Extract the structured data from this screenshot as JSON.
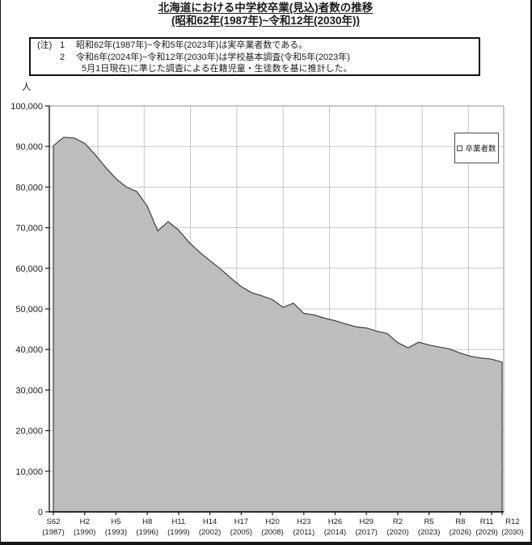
{
  "header": {
    "title_line1": "北海道における中学校卒業(見込)者数の推移",
    "title_line2": "(昭和62年(1987年)~令和12年(2030年))"
  },
  "note": {
    "lines": [
      {
        "prefix": "(注)",
        "num": "1",
        "text": "昭和62年(1987年)~令和5年(2023年)は実卒業者数である。"
      },
      {
        "prefix": "",
        "num": "2",
        "text": "令和6年(2024年)~令和12年(2030年)は学校基本調査(令和5年(2023年)"
      },
      {
        "prefix": "",
        "num": "",
        "text": "5月1日現在)に準じた調査による在籍児童・生徒数を基に推計した。"
      }
    ]
  },
  "chart_data": {
    "type": "area",
    "title": "北海道における中学校卒業(見込)者数の推移",
    "unit_label": "人",
    "legend": "卒業者数",
    "legend_position": "top-right",
    "ylim": [
      0,
      100000
    ],
    "grid": true,
    "y_ticks": [
      {
        "value": 0,
        "label": "0"
      },
      {
        "value": 10000,
        "label": "10,000"
      },
      {
        "value": 20000,
        "label": "20,000"
      },
      {
        "value": 30000,
        "label": "30,000"
      },
      {
        "value": 40000,
        "label": "40,000"
      },
      {
        "value": 50000,
        "label": "50,000"
      },
      {
        "value": 60000,
        "label": "60,000"
      },
      {
        "value": 70000,
        "label": "70,000"
      },
      {
        "value": 80000,
        "label": "80,000"
      },
      {
        "value": 90000,
        "label": "90,000"
      },
      {
        "value": 100000,
        "label": "100,000"
      }
    ],
    "x_ticks": [
      {
        "year": 1987,
        "era": "S62",
        "label": "(1987)"
      },
      {
        "year": 1990,
        "era": "H2",
        "label": "(1990)"
      },
      {
        "year": 1993,
        "era": "H5",
        "label": "(1993)"
      },
      {
        "year": 1996,
        "era": "H8",
        "label": "(1996)"
      },
      {
        "year": 1999,
        "era": "H11",
        "label": "(1999)"
      },
      {
        "year": 2002,
        "era": "H14",
        "label": "(2002)"
      },
      {
        "year": 2005,
        "era": "H17",
        "label": "(2005)"
      },
      {
        "year": 2008,
        "era": "H20",
        "label": "(2008)"
      },
      {
        "year": 2011,
        "era": "H23",
        "label": "(2011)"
      },
      {
        "year": 2014,
        "era": "H26",
        "label": "(2014)"
      },
      {
        "year": 2017,
        "era": "H29",
        "label": "(2017)"
      },
      {
        "year": 2020,
        "era": "R2",
        "label": "(2020)"
      },
      {
        "year": 2023,
        "era": "R5",
        "label": "(2023)"
      },
      {
        "year": 2026,
        "era": "R8",
        "label": "(2026)"
      },
      {
        "year": 2029,
        "era": "R11",
        "label": "(2029)"
      },
      {
        "year": 2030,
        "era": "R12",
        "label": "(2030)"
      }
    ],
    "x": [
      1987,
      1988,
      1989,
      1990,
      1991,
      1992,
      1993,
      1994,
      1995,
      1996,
      1997,
      1998,
      1999,
      2000,
      2001,
      2002,
      2003,
      2004,
      2005,
      2006,
      2007,
      2008,
      2009,
      2010,
      2011,
      2012,
      2013,
      2014,
      2015,
      2016,
      2017,
      2018,
      2019,
      2020,
      2021,
      2022,
      2023,
      2024,
      2025,
      2026,
      2027,
      2028,
      2029,
      2030
    ],
    "series": [
      {
        "name": "卒業者数",
        "values": [
          90200,
          92300,
          92100,
          90800,
          88000,
          84900,
          82100,
          80000,
          78900,
          75300,
          69200,
          71500,
          69400,
          66400,
          64000,
          61900,
          59900,
          57600,
          55500,
          54000,
          53200,
          52300,
          50400,
          51400,
          48900,
          48500,
          47700,
          47100,
          46300,
          45600,
          45300,
          44500,
          43900,
          41700,
          40400,
          41800,
          41100,
          40600,
          40100,
          39100,
          38300,
          37900,
          37600,
          36900
        ]
      }
    ],
    "colors": {
      "area_fill": "#bdbdbd",
      "area_stroke": "#3f3f3f",
      "gridline": "#c6c6c6",
      "frame": "#a8a8a8",
      "axis": "#1a1a1a",
      "text": "#1a1a1a"
    }
  }
}
